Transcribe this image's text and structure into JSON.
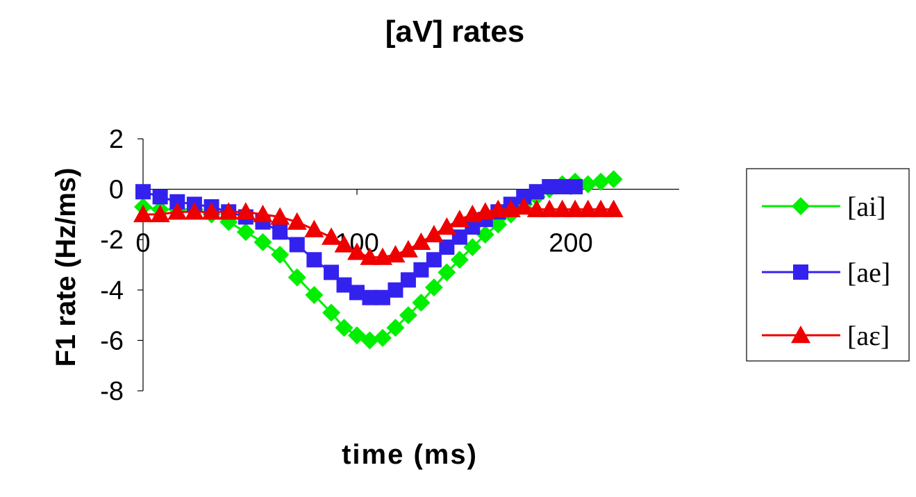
{
  "chart_data": {
    "type": "line",
    "title": "[aV] rates",
    "xlabel": "time (ms)",
    "ylabel": "F1 rate (Hz/ms)",
    "xlim": [
      0,
      250
    ],
    "ylim": [
      -8,
      2
    ],
    "x_ticks": [
      "0",
      "100",
      "200"
    ],
    "y_ticks": [
      "2",
      "0",
      "-2",
      "-4",
      "-6",
      "-8"
    ],
    "grid": false,
    "legend": "right",
    "series": [
      {
        "name": "[ai]",
        "color": "#00ee00",
        "marker": "diamond",
        "x": [
          0,
          8,
          16,
          24,
          32,
          40,
          48,
          56,
          64,
          72,
          80,
          88,
          94,
          100,
          106,
          112,
          118,
          124,
          130,
          136,
          142,
          148,
          154,
          160,
          166,
          172,
          178,
          184,
          190,
          196,
          202,
          208,
          214,
          220
        ],
        "y": [
          -0.7,
          -0.8,
          -0.8,
          -0.8,
          -1.0,
          -1.3,
          -1.7,
          -2.1,
          -2.6,
          -3.5,
          -4.2,
          -4.9,
          -5.5,
          -5.8,
          -6.0,
          -5.9,
          -5.5,
          -5.0,
          -4.5,
          -3.9,
          -3.3,
          -2.8,
          -2.3,
          -1.8,
          -1.4,
          -1.0,
          -0.6,
          -0.3,
          0.0,
          0.2,
          0.3,
          0.2,
          0.3,
          0.4
        ]
      },
      {
        "name": "[ae]",
        "color": "#3322ee",
        "marker": "square",
        "x": [
          0,
          8,
          16,
          24,
          32,
          40,
          48,
          56,
          64,
          72,
          80,
          88,
          94,
          100,
          106,
          112,
          118,
          124,
          130,
          136,
          142,
          148,
          154,
          160,
          166,
          172,
          178,
          184,
          190,
          196,
          202
        ],
        "y": [
          -0.1,
          -0.3,
          -0.5,
          -0.6,
          -0.7,
          -0.9,
          -1.1,
          -1.3,
          -1.7,
          -2.2,
          -2.8,
          -3.3,
          -3.8,
          -4.1,
          -4.3,
          -4.3,
          -4.0,
          -3.6,
          -3.2,
          -2.8,
          -2.3,
          -1.9,
          -1.5,
          -1.2,
          -0.9,
          -0.6,
          -0.3,
          -0.1,
          0.1,
          0.1,
          0.1
        ]
      },
      {
        "name": "[aε]",
        "color": "#ee0000",
        "marker": "triangle",
        "x": [
          0,
          8,
          16,
          24,
          32,
          40,
          48,
          56,
          64,
          72,
          80,
          88,
          94,
          100,
          106,
          112,
          118,
          124,
          130,
          136,
          142,
          148,
          154,
          160,
          166,
          172,
          178,
          184,
          190,
          196,
          202,
          208,
          214,
          220
        ],
        "y": [
          -1.0,
          -1.0,
          -0.9,
          -0.9,
          -0.9,
          -0.9,
          -0.9,
          -1.0,
          -1.1,
          -1.3,
          -1.6,
          -1.9,
          -2.2,
          -2.5,
          -2.7,
          -2.7,
          -2.6,
          -2.4,
          -2.1,
          -1.8,
          -1.5,
          -1.2,
          -1.0,
          -0.9,
          -0.8,
          -0.8,
          -0.7,
          -0.8,
          -0.8,
          -0.8,
          -0.8,
          -0.8,
          -0.8,
          -0.8
        ]
      }
    ]
  }
}
